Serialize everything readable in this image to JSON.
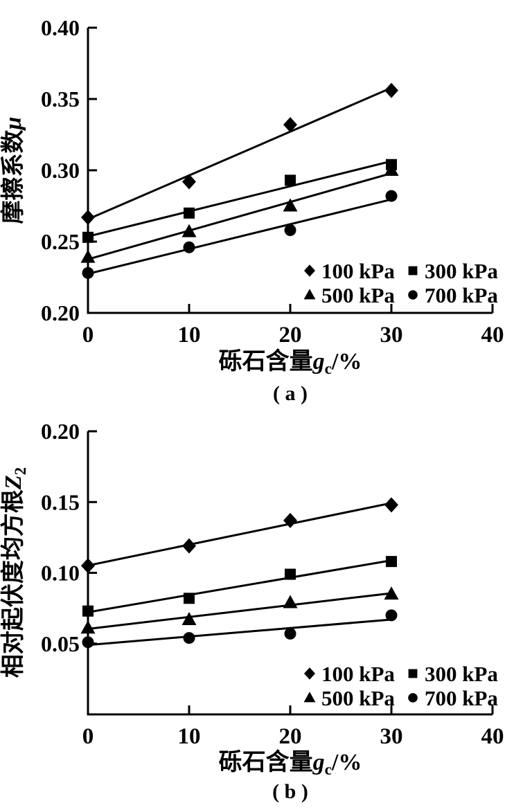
{
  "page": {
    "background": "#ffffff",
    "ink": "#000000"
  },
  "chart_data": [
    {
      "id": "a",
      "type": "scatter",
      "panel_tag": "( a )",
      "xlabel_parts": [
        {
          "t": "砾石含量"
        },
        {
          "t": "g",
          "style": "italic"
        },
        {
          "t": "c",
          "style": "sub"
        },
        {
          "t": "/%"
        }
      ],
      "ylabel_parts": [
        {
          "t": "摩擦系数"
        },
        {
          "t": "μ",
          "style": "italic"
        }
      ],
      "xlim": [
        0,
        40
      ],
      "ylim": [
        0.2,
        0.4
      ],
      "xticks": [
        {
          "v": 0,
          "label": "0"
        },
        {
          "v": 10,
          "label": "10"
        },
        {
          "v": 20,
          "label": "20"
        },
        {
          "v": 30,
          "label": "30"
        },
        {
          "v": 40,
          "label": "40"
        }
      ],
      "yticks": [
        {
          "v": 0.2,
          "label": "0.20"
        },
        {
          "v": 0.25,
          "label": "0.25"
        },
        {
          "v": 0.3,
          "label": "0.30"
        },
        {
          "v": 0.35,
          "label": "0.35"
        },
        {
          "v": 0.4,
          "label": "0.40"
        }
      ],
      "x": [
        0,
        10,
        20,
        30
      ],
      "series": [
        {
          "name": "100 kPa",
          "marker": "diamond",
          "values": [
            0.267,
            0.292,
            0.332,
            0.356
          ]
        },
        {
          "name": "300 kPa",
          "marker": "square",
          "values": [
            0.253,
            0.27,
            0.293,
            0.304
          ]
        },
        {
          "name": "500 kPa",
          "marker": "triangle",
          "values": [
            0.239,
            0.257,
            0.275,
            0.3
          ]
        },
        {
          "name": "700 kPa",
          "marker": "circle",
          "values": [
            0.228,
            0.246,
            0.258,
            0.282
          ]
        }
      ],
      "trendlines": true,
      "legend_position": "inside-bottom-right",
      "grid": false
    },
    {
      "id": "b",
      "type": "scatter",
      "panel_tag": "( b )",
      "xlabel_parts": [
        {
          "t": "砾石含量"
        },
        {
          "t": "g",
          "style": "italic"
        },
        {
          "t": "c",
          "style": "sub"
        },
        {
          "t": "/%"
        }
      ],
      "ylabel_parts": [
        {
          "t": "相对起伏度均方根"
        },
        {
          "t": "Z",
          "style": "italic"
        },
        {
          "t": "2",
          "style": "sub"
        }
      ],
      "xlim": [
        0,
        40
      ],
      "ylim": [
        0,
        0.2
      ],
      "xticks": [
        {
          "v": 0,
          "label": "0"
        },
        {
          "v": 10,
          "label": "10"
        },
        {
          "v": 20,
          "label": "20"
        },
        {
          "v": 30,
          "label": "30"
        },
        {
          "v": 40,
          "label": "40"
        }
      ],
      "yticks": [
        {
          "v": 0.05,
          "label": "0.05"
        },
        {
          "v": 0.1,
          "label": "0.10"
        },
        {
          "v": 0.15,
          "label": "0.15"
        },
        {
          "v": 0.2,
          "label": "0.20"
        }
      ],
      "x": [
        0,
        10,
        20,
        30
      ],
      "series": [
        {
          "name": "100 kPa",
          "marker": "diamond",
          "values": [
            0.105,
            0.119,
            0.137,
            0.148
          ]
        },
        {
          "name": "300 kPa",
          "marker": "square",
          "values": [
            0.073,
            0.082,
            0.099,
            0.108
          ]
        },
        {
          "name": "500 kPa",
          "marker": "triangle",
          "values": [
            0.061,
            0.067,
            0.079,
            0.085
          ]
        },
        {
          "name": "700 kPa",
          "marker": "circle",
          "values": [
            0.051,
            0.054,
            0.057,
            0.07
          ]
        }
      ],
      "trendlines": true,
      "legend_position": "inside-bottom-right",
      "grid": false
    }
  ]
}
